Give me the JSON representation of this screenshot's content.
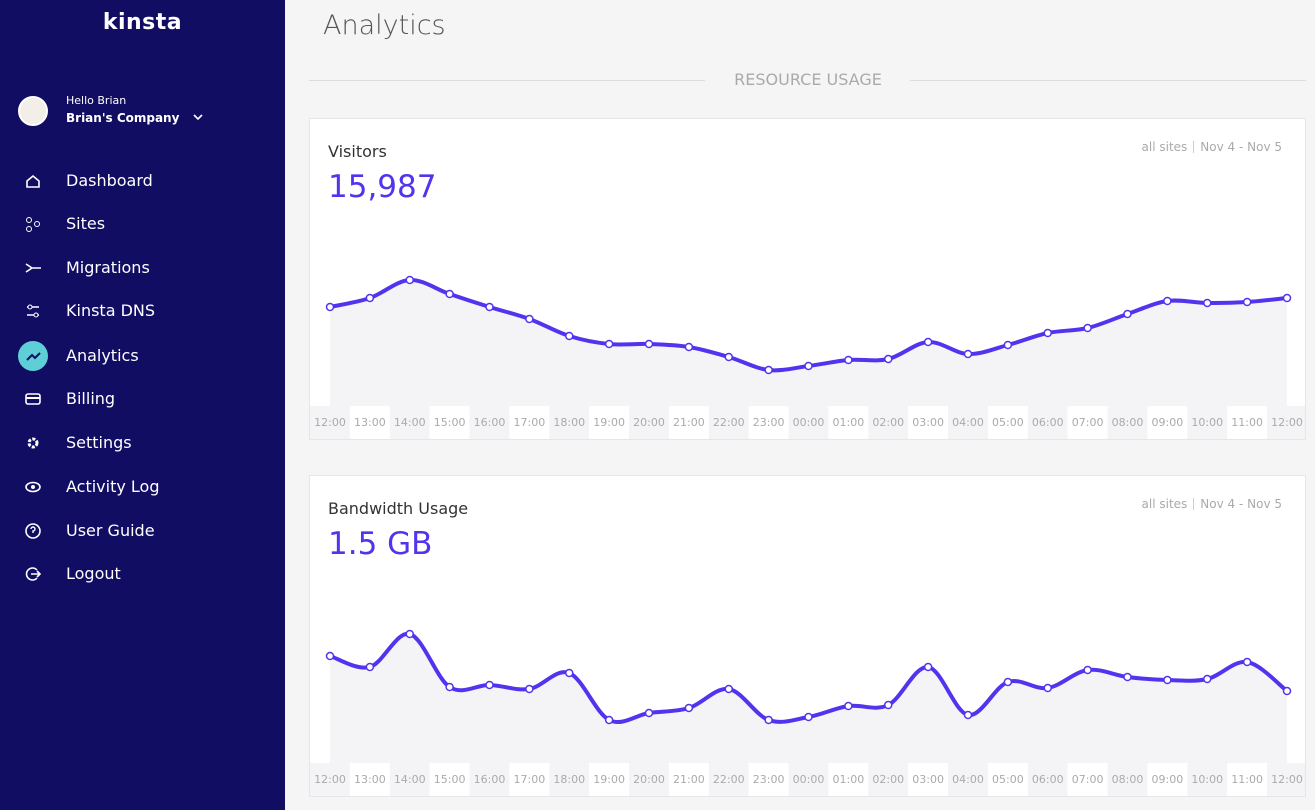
{
  "brand": "kinsta",
  "user": {
    "greeting": "Hello Brian",
    "company": "Brian's Company"
  },
  "nav": [
    "Dashboard",
    "Sites",
    "Migrations",
    "Kinsta DNS",
    "Analytics",
    "Billing",
    "Settings",
    "Activity Log",
    "User Guide",
    "Logout"
  ],
  "page_title": "Analytics",
  "section_title": "RESOURCE USAGE",
  "chart_data": [
    {
      "type": "line",
      "title": "Visitors",
      "total": "15,987",
      "scope": "all sites",
      "date_range": "Nov 4 - Nov 5",
      "color": "#5333ed",
      "categories": [
        "12:00",
        "13:00",
        "14:00",
        "15:00",
        "16:00",
        "17:00",
        "18:00",
        "19:00",
        "20:00",
        "21:00",
        "22:00",
        "23:00",
        "00:00",
        "01:00",
        "02:00",
        "03:00",
        "04:00",
        "05:00",
        "06:00",
        "07:00",
        "08:00",
        "09:00",
        "10:00",
        "11:00",
        "12:00"
      ],
      "values": [
        99,
        108,
        126,
        112,
        99,
        87,
        70,
        62,
        62,
        59,
        49,
        36,
        40,
        46,
        47,
        64,
        52,
        61,
        73,
        78,
        92,
        105,
        103,
        104,
        108
      ],
      "ylim": [
        0,
        200
      ]
    },
    {
      "type": "line",
      "title": "Bandwidth Usage",
      "total": "1.5 GB",
      "scope": "all sites",
      "date_range": "Nov 4 - Nov 5",
      "color": "#5333ed",
      "categories": [
        "12:00",
        "13:00",
        "14:00",
        "15:00",
        "16:00",
        "17:00",
        "18:00",
        "19:00",
        "20:00",
        "21:00",
        "22:00",
        "23:00",
        "00:00",
        "01:00",
        "02:00",
        "03:00",
        "04:00",
        "05:00",
        "06:00",
        "07:00",
        "08:00",
        "09:00",
        "10:00",
        "11:00",
        "12:00"
      ],
      "values": [
        107,
        96,
        129,
        76,
        78,
        74,
        90,
        43,
        50,
        55,
        74,
        43,
        46,
        57,
        58,
        96,
        48,
        81,
        75,
        93,
        86,
        83,
        84,
        101,
        72
      ],
      "ylim": [
        0,
        200
      ]
    }
  ]
}
